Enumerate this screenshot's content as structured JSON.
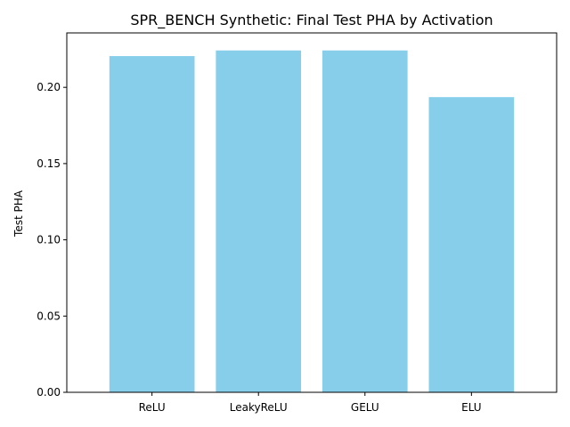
{
  "chart_data": {
    "type": "bar",
    "title": "SPR_BENCH Synthetic: Final Test PHA by Activation",
    "xlabel": "",
    "ylabel": "Test PHA",
    "categories": [
      "ReLU",
      "LeakyReLU",
      "GELU",
      "ELU"
    ],
    "values": [
      0.2205,
      0.2242,
      0.2242,
      0.1936
    ],
    "ylim": [
      0,
      0.2357
    ],
    "yticks": [
      0.0,
      0.05,
      0.1,
      0.15,
      0.2
    ],
    "ytick_labels": [
      "0.00",
      "0.05",
      "0.10",
      "0.15",
      "0.20"
    ],
    "bar_color": "#87ceeb",
    "grid": false,
    "legend": "none"
  }
}
